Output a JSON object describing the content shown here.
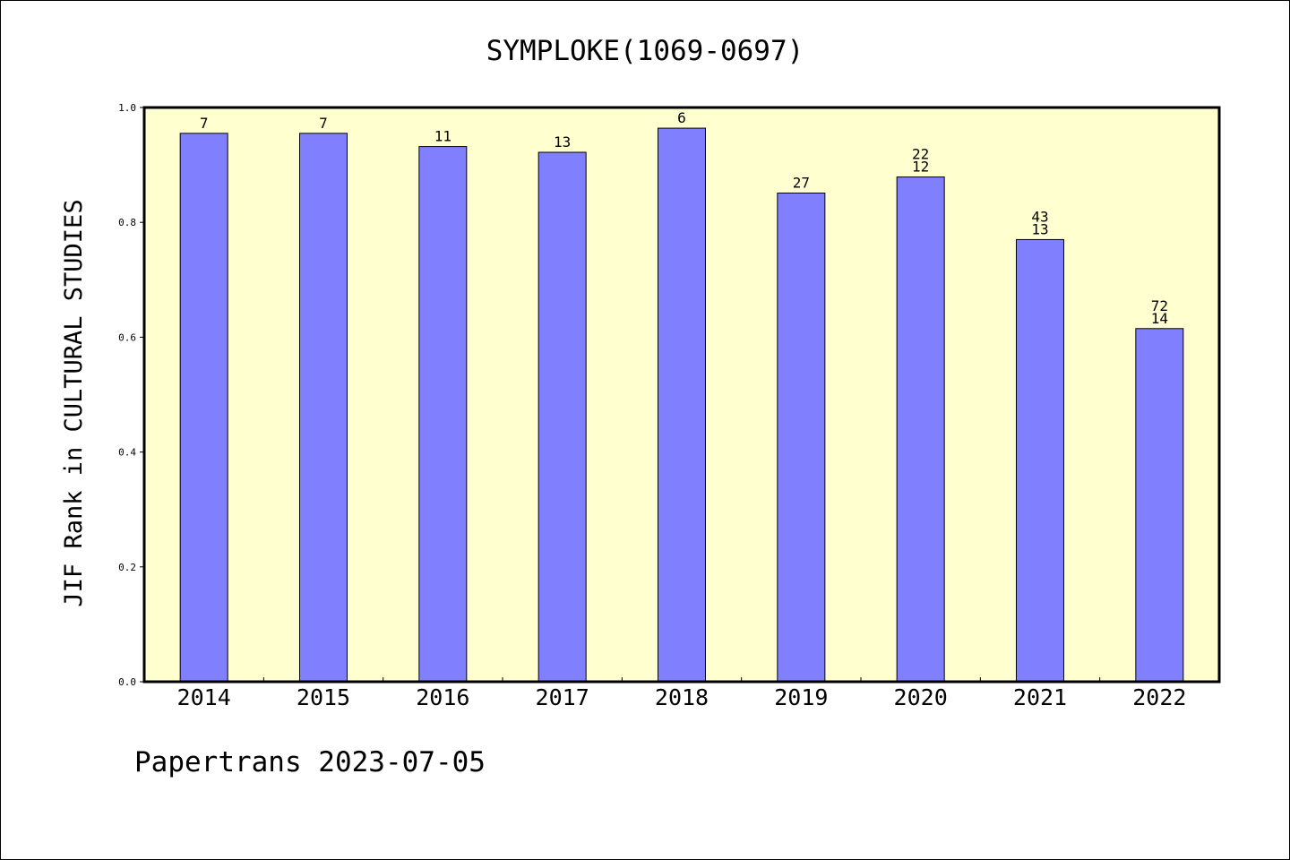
{
  "chart_data": {
    "type": "bar",
    "title": "SYMPLOKE(1069-0697)",
    "xlabel": "",
    "ylabel": "JIF Rank in CULTURAL STUDIES",
    "categories": [
      "2014",
      "2015",
      "2016",
      "2017",
      "2018",
      "2019",
      "2020",
      "2021",
      "2022"
    ],
    "values": [
      0.955,
      0.955,
      0.932,
      0.922,
      0.964,
      0.851,
      0.879,
      0.77,
      0.615
    ],
    "rank_labels": [
      [
        "7"
      ],
      [
        "7"
      ],
      [
        "11"
      ],
      [
        "13"
      ],
      [
        "6"
      ],
      [
        "27"
      ],
      [
        "22",
        "12"
      ],
      [
        "43",
        "13"
      ],
      [
        "72",
        "14"
      ]
    ],
    "ylim": [
      0,
      1.0
    ],
    "yticks": [
      "0.0",
      "0.2",
      "0.4",
      "0.6",
      "0.8",
      "1.0"
    ],
    "grid": false,
    "plot_background": "#FFFFD0",
    "bar_color": "#8080FF"
  },
  "footer": {
    "text": "Papertrans 2023-07-05"
  }
}
